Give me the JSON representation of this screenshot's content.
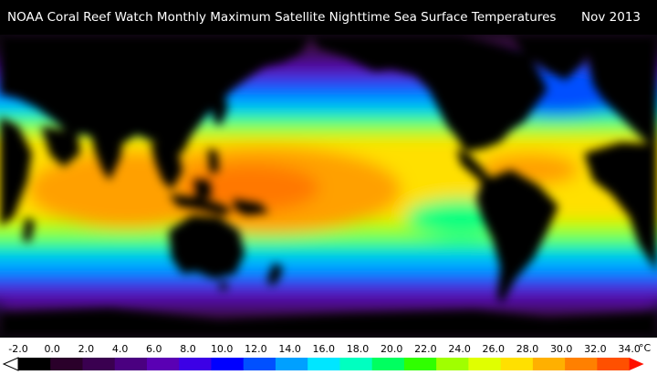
{
  "header": {
    "title": "NOAA Coral Reef Watch Monthly Maximum Satellite Nighttime Sea Surface Temperatures",
    "date": "Nov 2013"
  },
  "legend": {
    "labels": [
      "-2.0",
      "0.0",
      "2.0",
      "4.0",
      "6.0",
      "8.0",
      "10.0",
      "12.0",
      "14.0",
      "16.0",
      "18.0",
      "20.0",
      "22.0",
      "24.0",
      "26.0",
      "28.0",
      "30.0",
      "32.0",
      "34.0"
    ],
    "unit": "°C",
    "colors": [
      "#000000",
      "#2a002a",
      "#3a0050",
      "#4a0080",
      "#5a00b4",
      "#3c00e6",
      "#0000ff",
      "#0050ff",
      "#00a0ff",
      "#00e6ff",
      "#00ffc0",
      "#00ff60",
      "#30ff00",
      "#a0ff00",
      "#e0ff00",
      "#ffe000",
      "#ffb000",
      "#ff8000",
      "#ff5000",
      "#ff1000"
    ]
  },
  "map": {
    "colors": {
      "land": "#000000",
      "polar": "#3b0a45",
      "subpolar": "#5a00b4",
      "cold": "#0050ff",
      "cool": "#00b4ff",
      "mild": "#00ff80",
      "warm": "#a0ff00",
      "tropical": "#ffe000",
      "hot": "#ffa000",
      "warmpool": "#ff7800"
    }
  }
}
